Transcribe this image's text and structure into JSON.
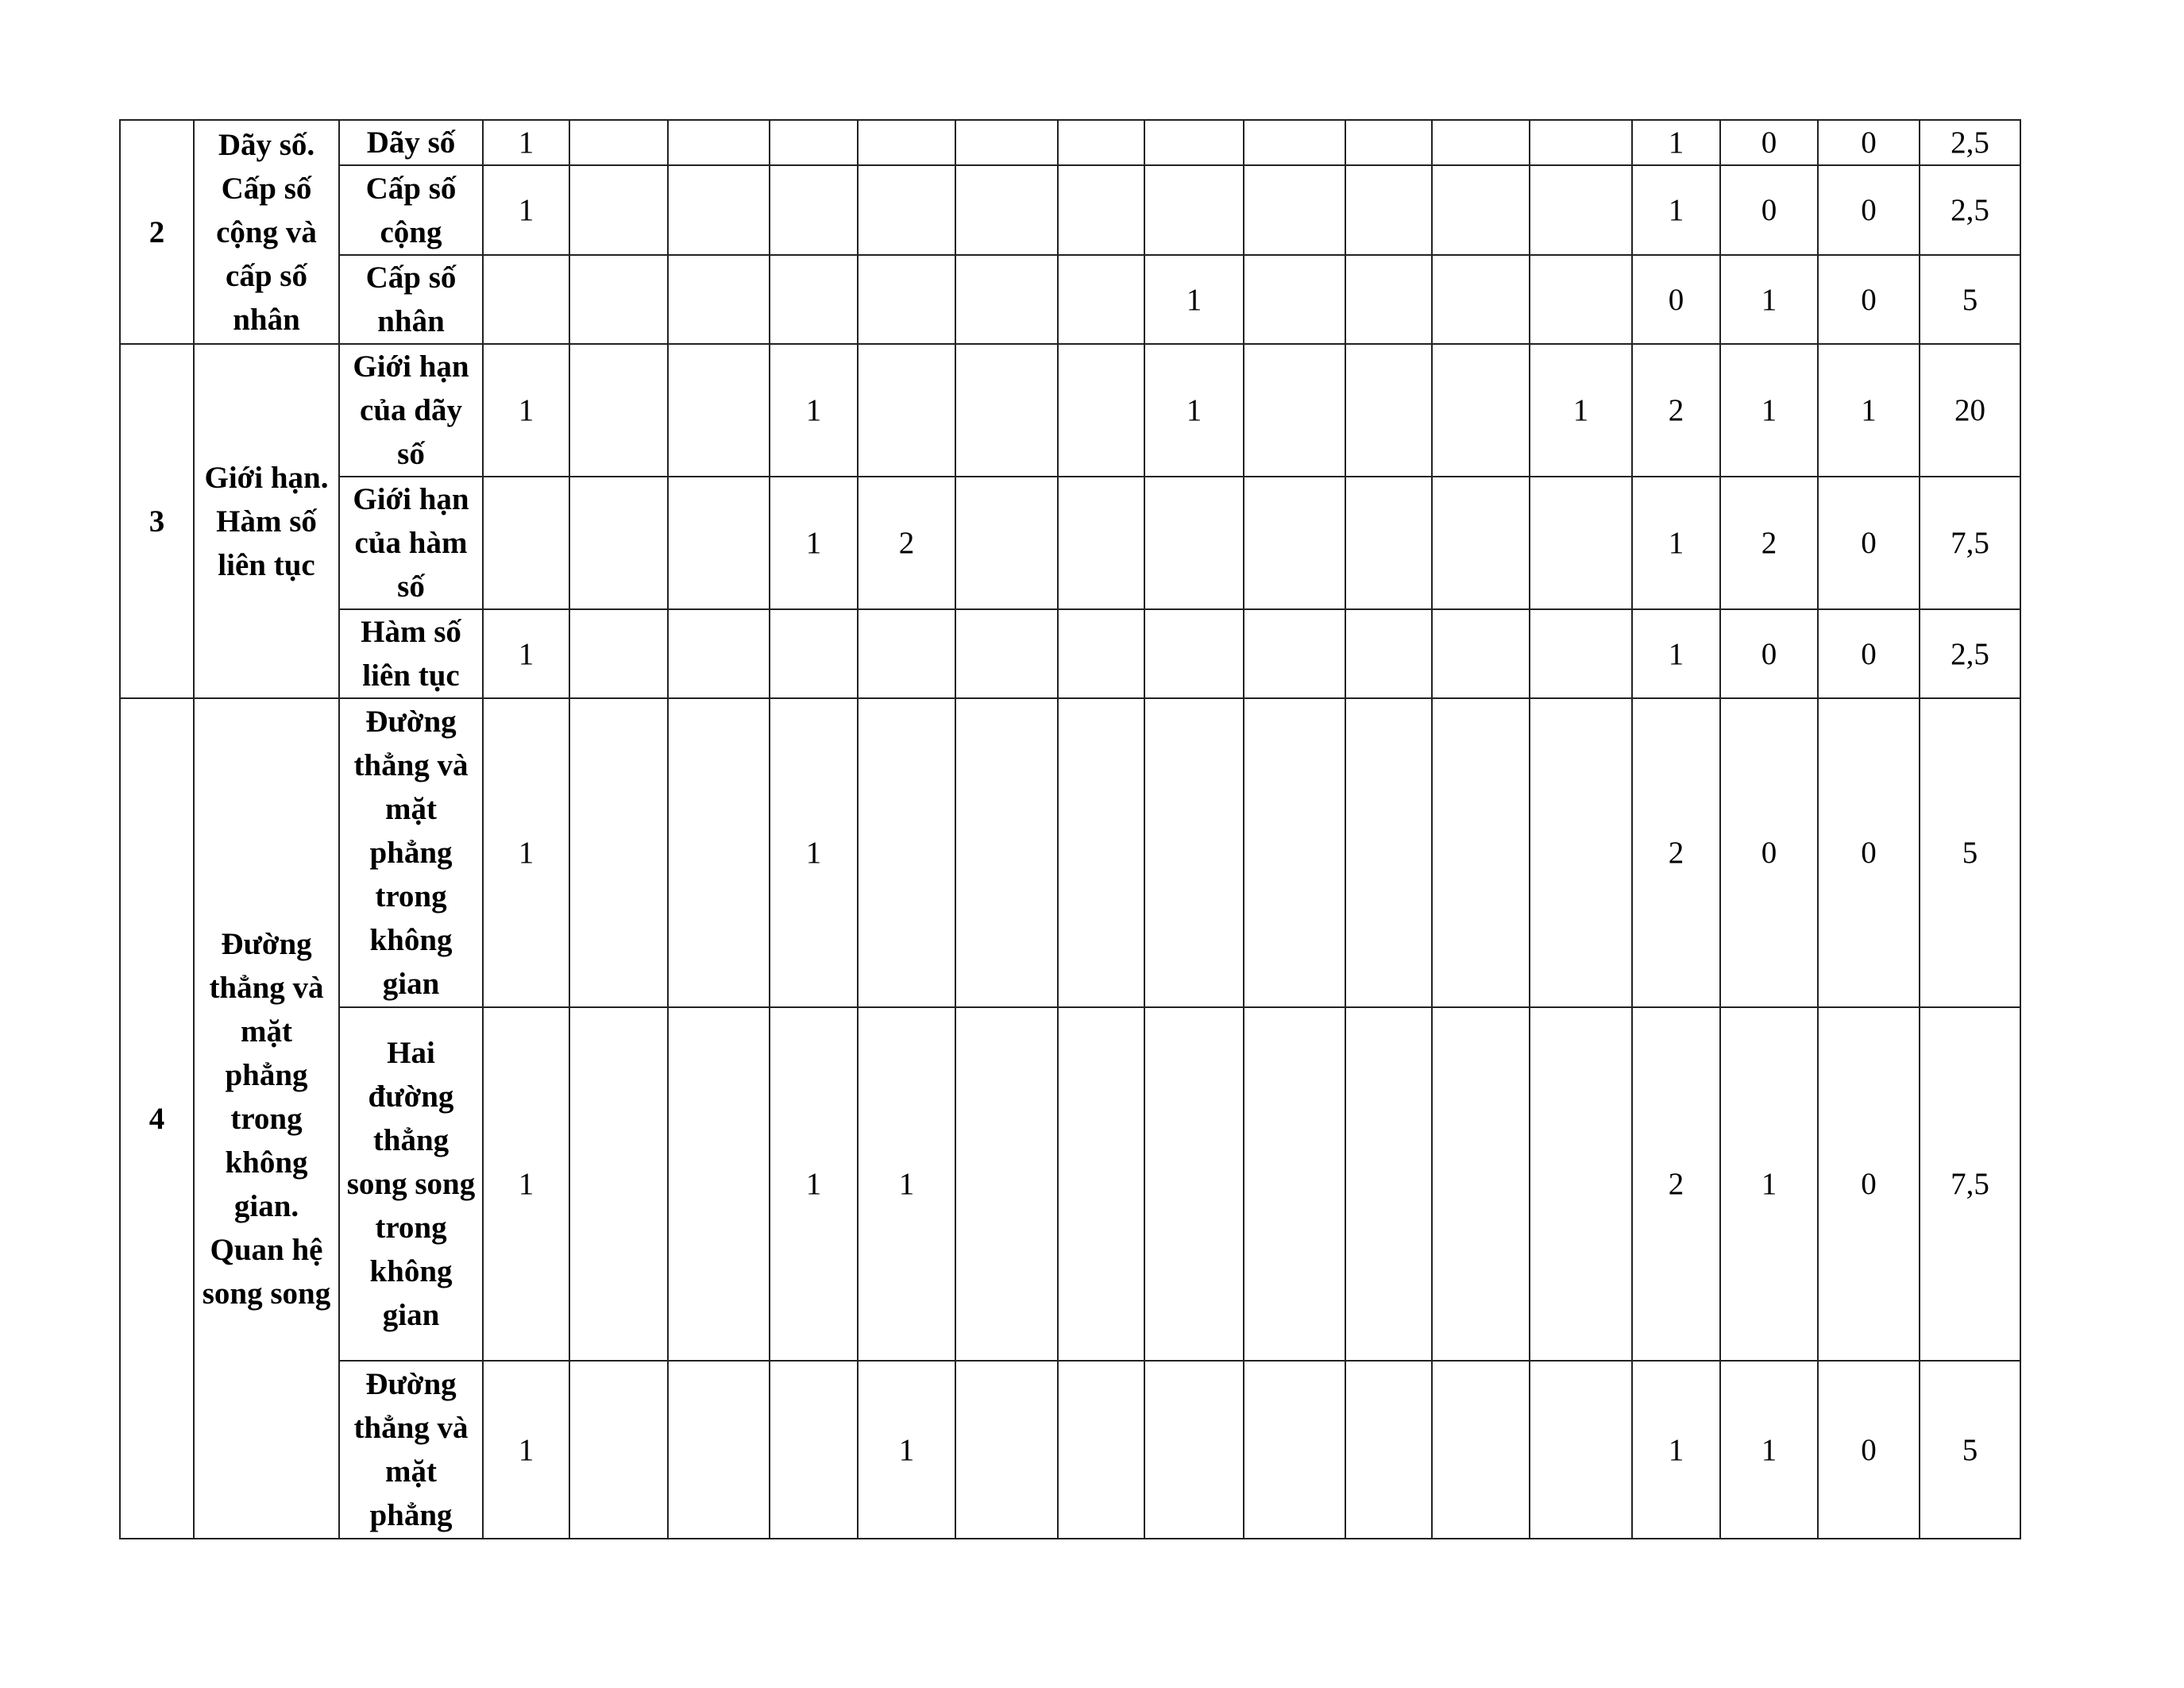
{
  "groups": [
    {
      "number": "2",
      "topic": "Dãy số. Cấp số cộng và cấp số nhân",
      "rows": [
        {
          "subtopic": "Dãy số",
          "cells": [
            "1",
            "",
            "",
            "",
            "",
            "",
            "",
            "",
            "",
            "",
            "",
            ""
          ],
          "totals": [
            "1",
            "0",
            "0",
            "2,5"
          ]
        },
        {
          "subtopic": "Cấp số cộng",
          "cells": [
            "1",
            "",
            "",
            "",
            "",
            "",
            "",
            "",
            "",
            "",
            "",
            ""
          ],
          "totals": [
            "1",
            "0",
            "0",
            "2,5"
          ]
        },
        {
          "subtopic": "Cấp số nhân",
          "cells": [
            "",
            "",
            "",
            "",
            "",
            "",
            "",
            "1",
            "",
            "",
            "",
            ""
          ],
          "totals": [
            "0",
            "1",
            "0",
            "5"
          ]
        }
      ]
    },
    {
      "number": "3",
      "topic": "Giới hạn. Hàm số liên tục",
      "rows": [
        {
          "subtopic": "Giới hạn của dãy số",
          "cells": [
            "1",
            "",
            "",
            "1",
            "",
            "",
            "",
            "1",
            "",
            "",
            "",
            "1"
          ],
          "totals": [
            "2",
            "1",
            "1",
            "20"
          ]
        },
        {
          "subtopic": "Giới hạn của hàm số",
          "cells": [
            "",
            "",
            "",
            "1",
            "2",
            "",
            "",
            "",
            "",
            "",
            "",
            ""
          ],
          "totals": [
            "1",
            "2",
            "0",
            "7,5"
          ]
        },
        {
          "subtopic": "Hàm số liên tục",
          "cells": [
            "1",
            "",
            "",
            "",
            "",
            "",
            "",
            "",
            "",
            "",
            "",
            ""
          ],
          "totals": [
            "1",
            "0",
            "0",
            "2,5"
          ]
        }
      ]
    },
    {
      "number": "4",
      "topic": "Đường thẳng và mặt phẳng trong không gian. Quan hệ song song",
      "rows": [
        {
          "subtopic": "Đường thẳng và mặt phẳng trong không gian",
          "cells": [
            "1",
            "",
            "",
            "1",
            "",
            "",
            "",
            "",
            "",
            "",
            "",
            ""
          ],
          "totals": [
            "2",
            "0",
            "0",
            "5"
          ]
        },
        {
          "subtopic": "Hai đường thẳng song song trong không gian",
          "cells": [
            "1",
            "",
            "",
            "1",
            "1",
            "",
            "",
            "",
            "",
            "",
            "",
            ""
          ],
          "totals": [
            "2",
            "1",
            "0",
            "7,5"
          ]
        },
        {
          "subtopic": "Đường thẳng và mặt phẳng",
          "cells": [
            "1",
            "",
            "",
            "",
            "1",
            "",
            "",
            "",
            "",
            "",
            "",
            ""
          ],
          "totals": [
            "1",
            "1",
            "0",
            "5"
          ]
        }
      ]
    }
  ]
}
